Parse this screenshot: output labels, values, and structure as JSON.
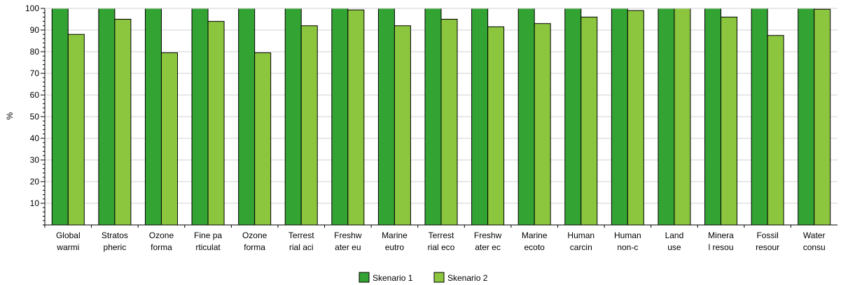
{
  "chart_data": {
    "type": "bar",
    "ylabel": "%",
    "ylim": [
      0,
      100
    ],
    "yticks": [
      10,
      20,
      30,
      40,
      50,
      60,
      70,
      80,
      90,
      100
    ],
    "grid": true,
    "legend_position": "bottom",
    "categories": [
      [
        "Global",
        "warmi"
      ],
      [
        "Stratos",
        "pheric"
      ],
      [
        "Ozone",
        "forma"
      ],
      [
        "Fine pa",
        "rticulat"
      ],
      [
        "Ozone",
        "forma"
      ],
      [
        "Terrest",
        "rial aci"
      ],
      [
        "Freshw",
        "ater eu"
      ],
      [
        "Marine",
        "eutro"
      ],
      [
        "Terrest",
        "rial eco"
      ],
      [
        "Freshw",
        "ater ec"
      ],
      [
        "Marine",
        "ecoto"
      ],
      [
        "Human",
        "carcin"
      ],
      [
        "Human",
        "non-c"
      ],
      [
        "Land",
        "use"
      ],
      [
        "Minera",
        "l resou"
      ],
      [
        "Fossil",
        "resour"
      ],
      [
        "Water",
        "consu"
      ]
    ],
    "series": [
      {
        "name": "Skenario 1",
        "color": "#33a333",
        "values": [
          100,
          100,
          100,
          100,
          100,
          100,
          100,
          100,
          100,
          100,
          100,
          100,
          100,
          100,
          100,
          100,
          100
        ]
      },
      {
        "name": "Skenario 2",
        "color": "#8cc63f",
        "values": [
          88,
          95,
          79.5,
          94,
          79.5,
          92,
          99.3,
          92,
          95,
          91.5,
          93,
          96,
          99,
          100,
          96,
          87.5,
          99.6
        ]
      }
    ]
  }
}
